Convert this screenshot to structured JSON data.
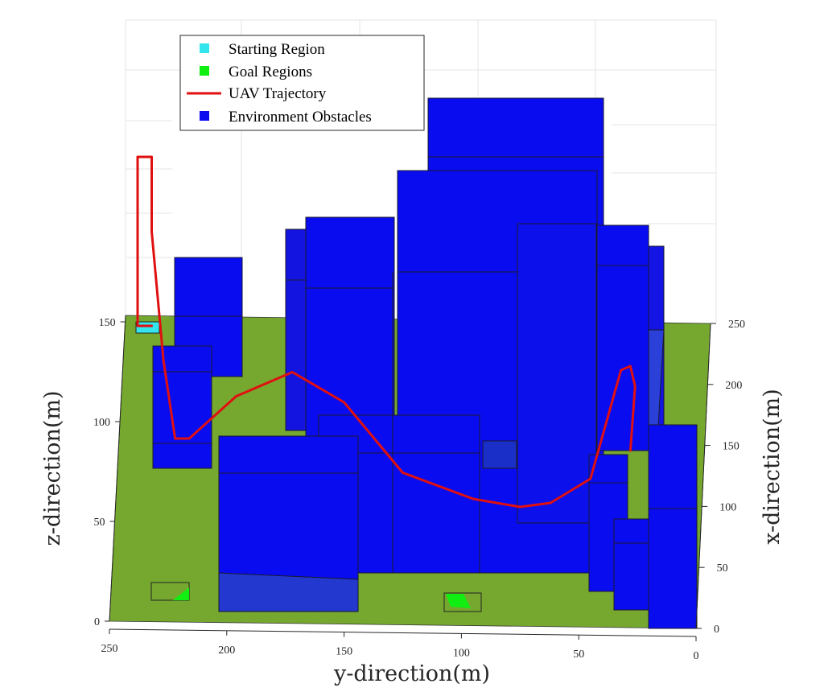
{
  "chart_data": {
    "type": "3d-scene",
    "colors": {
      "ground": "#76a830",
      "obstacle": "#0a0cf0",
      "obstacle_dark": "#1a2fc8",
      "start": "#33e6ee",
      "goal": "#11ee11",
      "trajectory": "#e01010",
      "grid": "#e6e6e6"
    },
    "axes": {
      "x": {
        "label": "x-direction(m)",
        "ticks": [
          "0",
          "50",
          "100",
          "150",
          "200",
          "250"
        ],
        "lim": [
          0,
          250
        ]
      },
      "y": {
        "label": "y-direction(m)",
        "ticks": [
          "250",
          "200",
          "150",
          "100",
          "50",
          "0"
        ],
        "lim": [
          0,
          250
        ]
      },
      "z": {
        "label": "z-direction(m)",
        "ticks": [
          "0",
          "50",
          "100",
          "150"
        ],
        "lim": [
          0,
          150
        ]
      },
      "grid": true
    },
    "legend": {
      "placement": "top-left",
      "entries": [
        {
          "label": "Starting Region",
          "marker": "square",
          "color": "#33e6ee"
        },
        {
          "label": "Goal Regions",
          "marker": "square",
          "color": "#11ee11"
        },
        {
          "label": "UAV Trajectory",
          "marker": "line",
          "color": "#e01010"
        },
        {
          "label": "Environment Obstacles",
          "marker": "square",
          "color": "#0a0cf0"
        }
      ]
    },
    "trajectory_y": [
      232,
      238,
      238,
      232,
      232,
      227,
      222,
      216,
      196,
      172,
      150,
      125,
      95,
      75,
      62,
      45,
      32,
      28,
      26,
      28
    ],
    "trajectory_z": [
      148,
      148,
      232,
      232,
      195,
      131,
      92,
      92,
      113,
      125,
      110,
      75,
      62,
      58,
      60,
      72,
      126,
      128,
      118,
      86
    ]
  }
}
